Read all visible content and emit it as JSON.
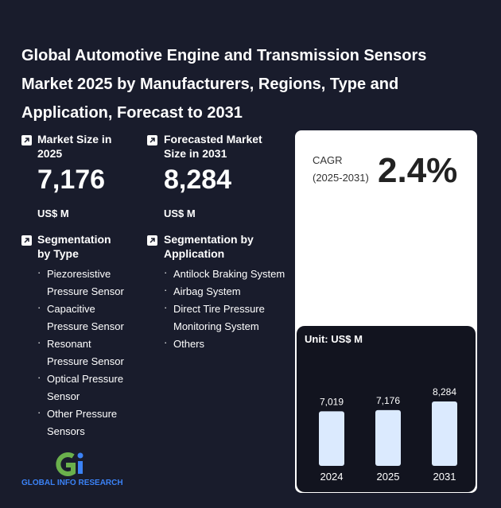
{
  "title": "Global Automotive Engine and Transmission Sensors Market 2025 by Manufacturers, Regions, Type and Application, Forecast to 2031",
  "market_size": {
    "label": "Market Size in 2025",
    "value": "7,176",
    "unit": "US$ M"
  },
  "forecast": {
    "label": "Forecasted Market Size in 2031",
    "value": "8,284",
    "unit": "US$ M"
  },
  "cagr": {
    "label": "CAGR",
    "period": "(2025-2031)",
    "value": "2.4%"
  },
  "segmentation_type": {
    "title": "Segmentation by Type",
    "items": [
      "Piezoresistive Pressure Sensor",
      "Capacitive Pressure Sensor",
      "Resonant Pressure Sensor",
      "Optical Pressure Sensor",
      "Other Pressure Sensors"
    ]
  },
  "segmentation_application": {
    "title": "Segmentation by Application",
    "items": [
      "Antilock Braking System",
      "Airbag System",
      "Direct Tire Pressure Monitoring System",
      "Others"
    ]
  },
  "chart_data": {
    "type": "bar",
    "unit_label": "Unit: US$ M",
    "categories": [
      "2024",
      "2025",
      "2031"
    ],
    "values": [
      7019,
      7176,
      8284
    ],
    "value_labels": [
      "7,019",
      "7,176",
      "8,284"
    ],
    "color": "#dbeafe"
  },
  "logo": "GLOBAL INFO RESEARCH"
}
